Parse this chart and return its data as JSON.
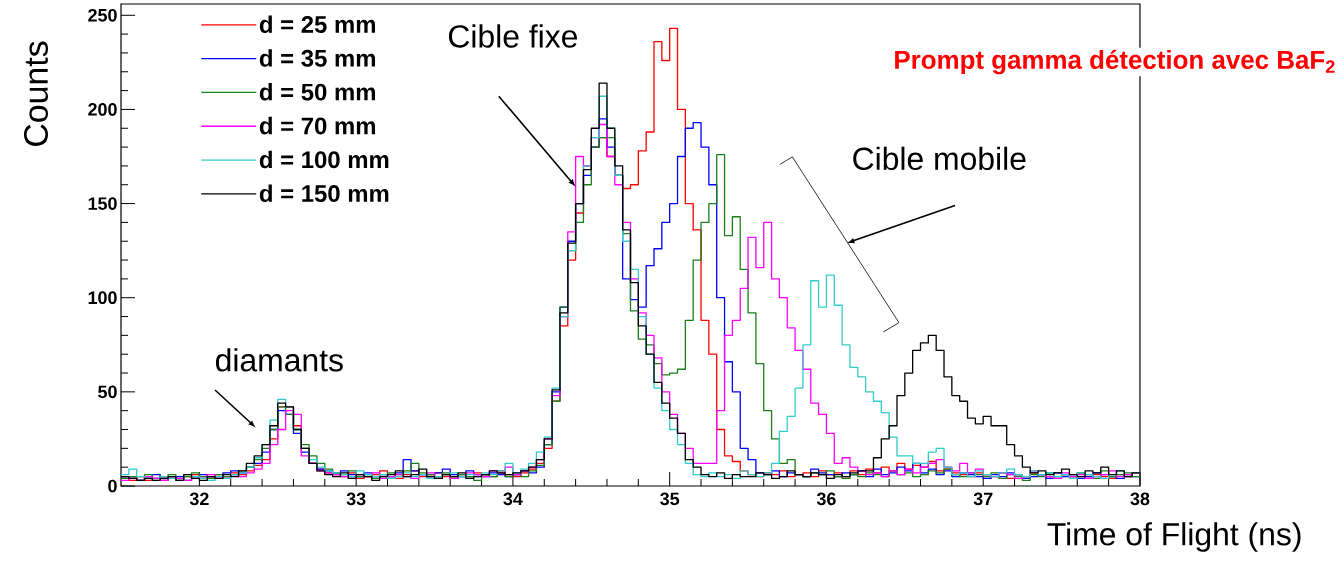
{
  "chart_data": {
    "type": "histogram",
    "title": "Prompt gamma détection avec BaF$_{2}$",
    "xlabel": "Time of Flight (ns)",
    "ylabel": "Counts",
    "xlim": [
      31.5,
      38
    ],
    "ylim": [
      0,
      256
    ],
    "xticks": [
      32,
      33,
      34,
      35,
      36,
      37,
      38
    ],
    "yticks": [
      0,
      50,
      100,
      150,
      200,
      250
    ],
    "legend": "top left",
    "bins": [
      31.5,
      31.55,
      31.6,
      31.65,
      31.7,
      31.75,
      31.8,
      31.85,
      31.9,
      31.95,
      32,
      32.05,
      32.1,
      32.15,
      32.2,
      32.25,
      32.3,
      32.35,
      32.4,
      32.45,
      32.5,
      32.55,
      32.6,
      32.65,
      32.7,
      32.75,
      32.8,
      32.85,
      32.9,
      32.95,
      33,
      33.05,
      33.1,
      33.15,
      33.2,
      33.25,
      33.3,
      33.35,
      33.4,
      33.45,
      33.5,
      33.55,
      33.6,
      33.65,
      33.7,
      33.75,
      33.8,
      33.85,
      33.9,
      33.95,
      34,
      34.05,
      34.1,
      34.15,
      34.2,
      34.25,
      34.3,
      34.35,
      34.4,
      34.45,
      34.5,
      34.55,
      34.6,
      34.65,
      34.7,
      34.75,
      34.8,
      34.85,
      34.9,
      34.95,
      35,
      35.05,
      35.1,
      35.15,
      35.2,
      35.25,
      35.3,
      35.35,
      35.4,
      35.45,
      35.5,
      35.55,
      35.6,
      35.65,
      35.7,
      35.75,
      35.8,
      35.85,
      35.9,
      35.95,
      36,
      36.05,
      36.1,
      36.15,
      36.2,
      36.25,
      36.3,
      36.35,
      36.4,
      36.45,
      36.5,
      36.55,
      36.6,
      36.65,
      36.7,
      36.75,
      36.8,
      36.85,
      36.9,
      36.95,
      37,
      37.05,
      37.1,
      37.15,
      37.2,
      37.25,
      37.3,
      37.35,
      37.4,
      37.45,
      37.5,
      37.55,
      37.6,
      37.65,
      37.7,
      37.75,
      37.8,
      37.85,
      37.9,
      37.95,
      38
    ],
    "series": [
      {
        "name": "d = 25 mm",
        "color": "#ff0000",
        "values": [
          4,
          3,
          5,
          3,
          4,
          5,
          4,
          3,
          5,
          6,
          4,
          5,
          6,
          5,
          7,
          6,
          8,
          11,
          14,
          25,
          42,
          42,
          32,
          20,
          12,
          9,
          7,
          6,
          5,
          7,
          4,
          5,
          6,
          8,
          5,
          4,
          6,
          8,
          5,
          6,
          7,
          5,
          4,
          6,
          5,
          7,
          6,
          5,
          8,
          6,
          5,
          7,
          9,
          12,
          20,
          45,
          85,
          120,
          145,
          170,
          180,
          185,
          175,
          165,
          158,
          160,
          178,
          188,
          236,
          226,
          243,
          200,
          150,
          136,
          88,
          70,
          30,
          16,
          13,
          8,
          6,
          5,
          7,
          6,
          8,
          5,
          6,
          7,
          5,
          8,
          6,
          7,
          5,
          8,
          6,
          9,
          7,
          10,
          8,
          12,
          9,
          11,
          10,
          13,
          8,
          9,
          7,
          6,
          5,
          7,
          6,
          5,
          7,
          4,
          6,
          5,
          7,
          6,
          4,
          5,
          6,
          4,
          7,
          5,
          6,
          5,
          4,
          6,
          5,
          7
        ]
      },
      {
        "name": "d = 35 mm",
        "color": "#0000ff",
        "values": [
          5,
          4,
          3,
          4,
          6,
          3,
          4,
          5,
          3,
          4,
          6,
          5,
          4,
          7,
          8,
          7,
          10,
          12,
          18,
          30,
          40,
          38,
          28,
          18,
          12,
          9,
          8,
          7,
          8,
          6,
          5,
          7,
          5,
          6,
          4,
          7,
          14,
          8,
          6,
          5,
          7,
          9,
          6,
          5,
          8,
          6,
          5,
          7,
          6,
          5,
          6,
          8,
          7,
          10,
          22,
          50,
          95,
          130,
          150,
          165,
          180,
          195,
          180,
          165,
          110,
          99,
          95,
          117,
          126,
          140,
          150,
          175,
          190,
          193,
          180,
          160,
          100,
          66,
          50,
          20,
          14,
          7,
          6,
          8,
          5,
          7,
          6,
          5,
          9,
          7,
          6,
          5,
          7,
          6,
          8,
          5,
          9,
          6,
          7,
          10,
          8,
          12,
          7,
          9,
          6,
          8,
          5,
          7,
          6,
          5,
          4,
          6,
          5,
          7,
          6,
          4,
          5,
          6,
          4,
          7,
          5,
          6,
          4,
          5,
          7,
          6,
          5,
          4,
          6,
          5
        ]
      },
      {
        "name": "d = 50 mm",
        "color": "#1a7f1a",
        "values": [
          4,
          5,
          3,
          6,
          4,
          5,
          6,
          4,
          5,
          7,
          5,
          4,
          6,
          5,
          6,
          8,
          10,
          14,
          20,
          30,
          42,
          38,
          30,
          22,
          16,
          12,
          9,
          7,
          6,
          8,
          5,
          6,
          4,
          5,
          7,
          6,
          8,
          12,
          7,
          6,
          5,
          7,
          4,
          6,
          5,
          3,
          6,
          5,
          7,
          5,
          6,
          5,
          8,
          11,
          22,
          45,
          95,
          125,
          140,
          160,
          180,
          185,
          185,
          165,
          134,
          93,
          78,
          75,
          65,
          59,
          60,
          62,
          88,
          120,
          140,
          150,
          176,
          133,
          143,
          115,
          92,
          65,
          40,
          25,
          12,
          14,
          6,
          5,
          7,
          6,
          8,
          5,
          4,
          6,
          5,
          7,
          6,
          5,
          8,
          6,
          7,
          5,
          6,
          8,
          7,
          9,
          6,
          5,
          7,
          6,
          5,
          7,
          4,
          6,
          5,
          3,
          6,
          5,
          7,
          4,
          6,
          5,
          7,
          6,
          4,
          8,
          5,
          6,
          7,
          5
        ]
      },
      {
        "name": "d = 70 mm",
        "color": "#ff00ff",
        "values": [
          3,
          4,
          3,
          5,
          4,
          3,
          5,
          4,
          3,
          5,
          4,
          6,
          5,
          4,
          6,
          5,
          7,
          9,
          12,
          22,
          30,
          40,
          38,
          16,
          12,
          8,
          7,
          6,
          5,
          4,
          6,
          5,
          7,
          4,
          5,
          6,
          5,
          4,
          6,
          7,
          5,
          6,
          4,
          5,
          7,
          6,
          5,
          8,
          7,
          10,
          6,
          8,
          10,
          14,
          25,
          48,
          90,
          135,
          175,
          170,
          185,
          192,
          175,
          160,
          140,
          110,
          92,
          80,
          68,
          50,
          38,
          28,
          20,
          12,
          12,
          12,
          40,
          80,
          88,
          105,
          132,
          116,
          140,
          110,
          100,
          84,
          72,
          62,
          44,
          38,
          28,
          12,
          15,
          10,
          8,
          6,
          7,
          5,
          8,
          6,
          9,
          7,
          10,
          12,
          14,
          10,
          8,
          12,
          7,
          9,
          6,
          5,
          7,
          6,
          4,
          5,
          8,
          6,
          5,
          4,
          7,
          5,
          6,
          4,
          5,
          6,
          8,
          5,
          6,
          7
        ]
      },
      {
        "name": "d = 100 mm",
        "color": "#33cccc",
        "values": [
          6,
          9,
          5,
          4,
          3,
          5,
          4,
          3,
          6,
          5,
          4,
          3,
          5,
          4,
          6,
          7,
          10,
          15,
          22,
          35,
          46,
          42,
          30,
          20,
          14,
          10,
          8,
          7,
          6,
          5,
          8,
          6,
          5,
          6,
          4,
          5,
          7,
          5,
          6,
          4,
          5,
          6,
          7,
          5,
          6,
          5,
          7,
          6,
          8,
          12,
          7,
          9,
          12,
          18,
          26,
          52,
          90,
          125,
          150,
          170,
          185,
          207,
          190,
          165,
          130,
          115,
          90,
          70,
          52,
          40,
          30,
          22,
          12,
          6,
          5,
          7,
          5,
          6,
          4,
          8,
          6,
          5,
          7,
          12,
          29,
          37,
          52,
          75,
          109,
          95,
          112,
          96,
          75,
          63,
          58,
          50,
          45,
          39,
          26,
          16,
          16,
          12,
          12,
          18,
          20,
          10,
          6,
          7,
          5,
          8,
          6,
          5,
          7,
          9,
          6,
          5,
          8,
          6,
          7,
          5,
          6,
          4,
          7,
          6,
          5,
          4,
          6,
          8,
          5,
          7
        ]
      },
      {
        "name": "d = 150 mm",
        "color": "#000000",
        "values": [
          5,
          4,
          3,
          4,
          3,
          4,
          5,
          3,
          6,
          4,
          3,
          5,
          4,
          6,
          5,
          8,
          12,
          16,
          22,
          32,
          44,
          42,
          30,
          20,
          12,
          8,
          6,
          5,
          7,
          4,
          6,
          5,
          3,
          5,
          6,
          8,
          5,
          6,
          9,
          5,
          4,
          6,
          5,
          7,
          4,
          5,
          6,
          8,
          7,
          6,
          7,
          8,
          10,
          14,
          25,
          51,
          92,
          129,
          150,
          168,
          190,
          214,
          190,
          170,
          136,
          108,
          85,
          70,
          55,
          44,
          36,
          28,
          14,
          10,
          6,
          5,
          7,
          4,
          6,
          5,
          5,
          7,
          6,
          4,
          5,
          8,
          6,
          5,
          7,
          6,
          4,
          6,
          5,
          7,
          8,
          8,
          15,
          25,
          32,
          48,
          60,
          72,
          76,
          80,
          72,
          58,
          48,
          45,
          36,
          33,
          37,
          32,
          32,
          22,
          16,
          10,
          7,
          8,
          6,
          7,
          9,
          6,
          5,
          8,
          7,
          10,
          6,
          8,
          5,
          7
        ]
      }
    ],
    "annotations": [
      "Cible fixe",
      "Cible mobile",
      "diamants"
    ]
  }
}
